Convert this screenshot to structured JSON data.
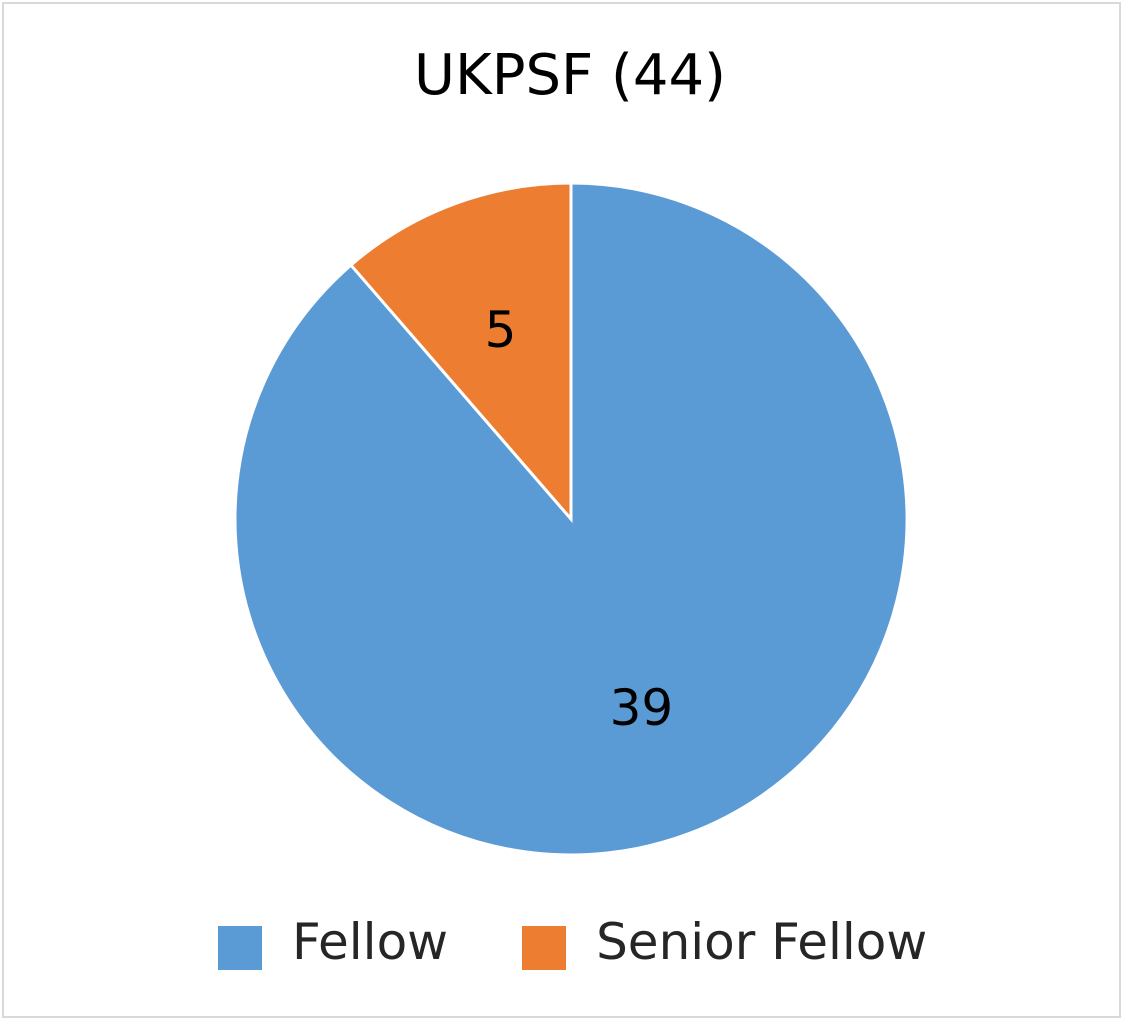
{
  "chart_data": {
    "type": "pie",
    "title": "UKPSF (44)",
    "categories": [
      "Fellow",
      "Senior Fellow"
    ],
    "values": [
      39,
      5
    ],
    "colors": [
      "#5b9bd5",
      "#ed7d31"
    ],
    "data_labels": [
      "39",
      "5"
    ],
    "start_angle_deg": 0,
    "direction": "clockwise",
    "legend_position": "bottom"
  }
}
